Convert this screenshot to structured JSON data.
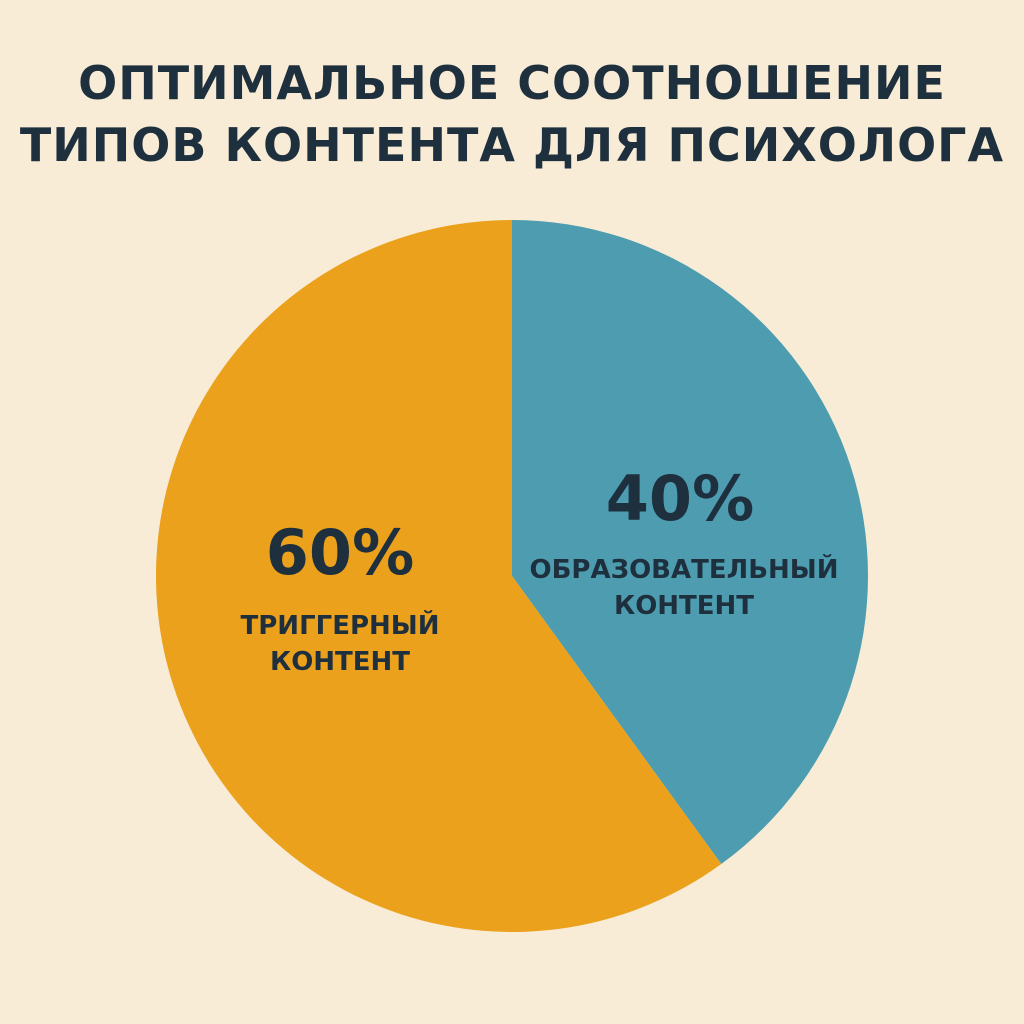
{
  "page": {
    "background": "#f8ecd6",
    "title_lines": [
      "ОПТИМАЛЬНОЕ СООТНОШЕНИЕ",
      "ТИПОВ КОНТЕНТА ДЛЯ ПСИХОЛОГА"
    ]
  },
  "chart_data": {
    "type": "pie",
    "title": "ОПТИМАЛЬНОЕ СООТНОШЕНИЕ ТИПОВ КОНТЕНТА ДЛЯ ПСИХОЛОГА",
    "start_angle": "12 o'clock, clockwise",
    "slices": [
      {
        "label_lines": [
          "ОБРАЗОВАТЕЛЬНЫЙ",
          "КОНТЕНТ"
        ],
        "value": 40,
        "value_label": "40%",
        "color": "#4d9cb0"
      },
      {
        "label_lines": [
          "ТРИГГЕРНЫЙ",
          "КОНТЕНТ"
        ],
        "value": 60,
        "value_label": "60%",
        "color": "#eba11c"
      }
    ],
    "legend": "none",
    "grid": false
  }
}
